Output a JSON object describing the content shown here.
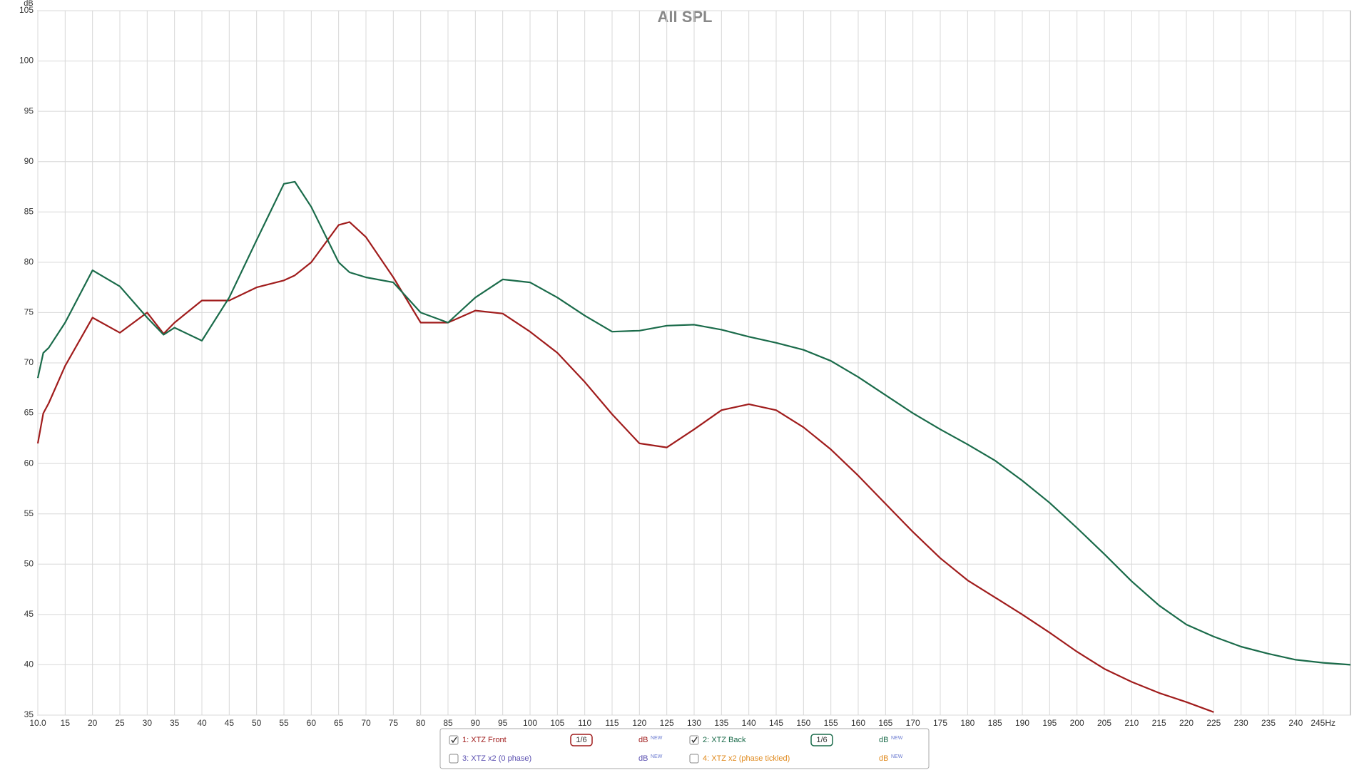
{
  "chart_data": {
    "type": "line",
    "title": "All SPL",
    "y_label": "dB",
    "x": [
      10,
      11,
      12,
      15,
      20,
      25,
      30,
      33,
      35,
      40,
      45,
      50,
      55,
      57,
      60,
      65,
      67,
      70,
      75,
      80,
      85,
      90,
      95,
      100,
      105,
      110,
      115,
      120,
      125,
      130,
      135,
      140,
      145,
      150,
      155,
      160,
      165,
      170,
      175,
      180,
      185,
      190,
      195,
      200,
      205,
      210,
      215,
      220,
      225,
      230,
      235,
      240,
      245,
      250
    ],
    "series": [
      {
        "name": "1: XTZ Front",
        "color": "#a01c1c",
        "checked": true,
        "smoothing": "1/6",
        "unit": "dB",
        "tag": "NEW",
        "values": [
          62,
          65,
          66,
          69.7,
          74.5,
          73,
          75,
          72.9,
          74,
          76.2,
          76.2,
          77.5,
          78.2,
          78.7,
          80,
          83.7,
          84,
          82.5,
          78.5,
          74,
          74,
          75.2,
          74.9,
          73.1,
          71,
          68.1,
          64.9,
          62,
          61.6,
          63.4,
          65.3,
          65.9,
          65.3,
          63.6,
          61.4,
          58.8,
          56,
          53.2,
          50.6,
          48.4,
          46.7,
          45,
          43.2,
          41.3,
          39.6,
          38.3,
          37.2,
          36.3,
          35.3,
          null,
          null,
          null,
          null,
          null
        ]
      },
      {
        "name": "2: XTZ Back",
        "color": "#1a6b4a",
        "checked": true,
        "smoothing": "1/6",
        "unit": "dB",
        "tag": "NEW",
        "values": [
          68.5,
          71,
          71.5,
          74,
          79.2,
          77.6,
          74.5,
          72.8,
          73.5,
          72.2,
          76.5,
          82.2,
          87.8,
          88,
          85.5,
          80,
          79,
          78.5,
          78,
          75,
          74,
          76.5,
          78.3,
          78,
          76.5,
          74.7,
          73.1,
          73.2,
          73.7,
          73.8,
          73.3,
          72.6,
          72,
          71.3,
          70.2,
          68.6,
          66.8,
          65,
          63.4,
          61.9,
          60.3,
          58.3,
          56.1,
          53.6,
          51,
          48.3,
          45.9,
          44,
          42.8,
          41.8,
          41.1,
          40.5,
          40.2,
          40
        ]
      }
    ],
    "inactive_series": [
      {
        "name": "3: XTZ x2 (0 phase)",
        "color": "#5a4fb0",
        "checked": false,
        "unit": "dB",
        "tag": "NEW"
      },
      {
        "name": "4: XTZ x2 (phase tickled)",
        "color": "#e08a1e",
        "checked": false,
        "unit": "dB",
        "tag": "NEW"
      }
    ],
    "xlim": [
      10,
      250
    ],
    "ylim": [
      35,
      105
    ],
    "xticks": [
      {
        "value": 10,
        "label": "10.0"
      },
      15,
      20,
      25,
      30,
      35,
      40,
      45,
      50,
      55,
      60,
      65,
      70,
      75,
      80,
      85,
      90,
      95,
      100,
      105,
      110,
      115,
      120,
      125,
      130,
      135,
      140,
      145,
      150,
      155,
      160,
      165,
      170,
      175,
      180,
      185,
      190,
      195,
      200,
      205,
      210,
      215,
      220,
      225,
      230,
      235,
      240,
      {
        "value": 245,
        "label": "245Hz"
      }
    ],
    "yticks": [
      35,
      40,
      45,
      50,
      55,
      60,
      65,
      70,
      75,
      80,
      85,
      90,
      95,
      100,
      105
    ],
    "grid": true
  }
}
